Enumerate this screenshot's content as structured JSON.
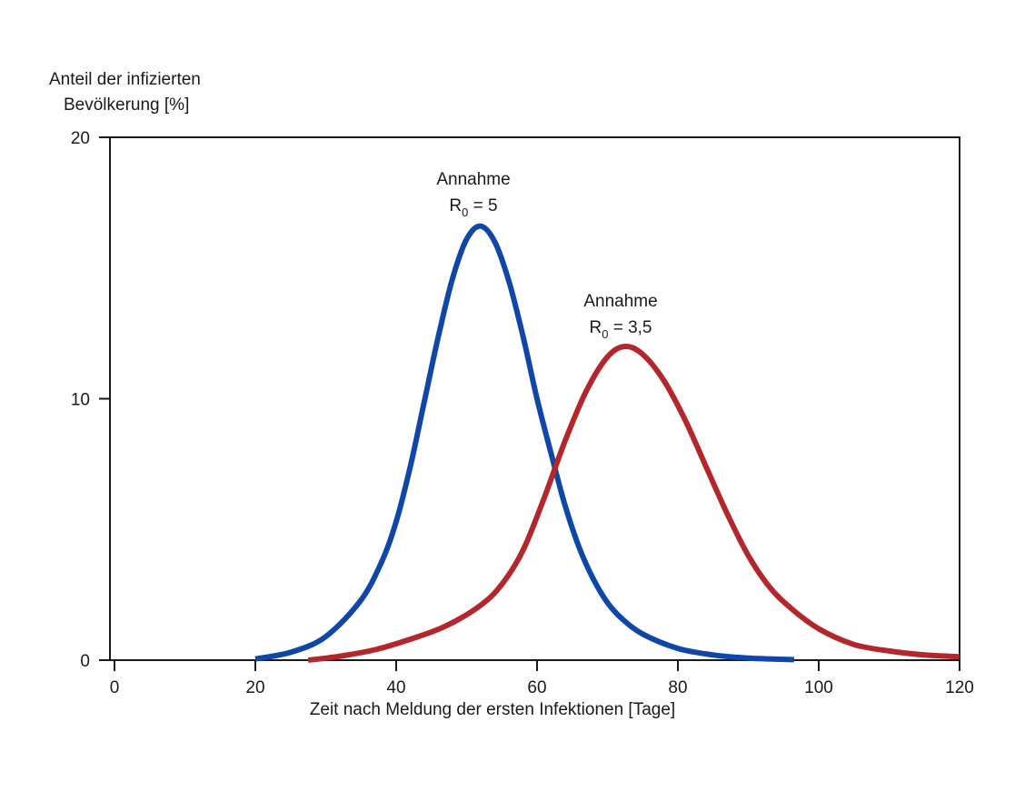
{
  "chart_data": {
    "type": "line",
    "ylabel_lines": [
      "Anteil der infizierten",
      "Bevölkerung [%]"
    ],
    "xlabel": "Zeit nach Meldung der ersten Infektionen [Tage]",
    "xlim": [
      0,
      120
    ],
    "ylim": [
      0,
      20
    ],
    "xticks": [
      "0",
      "20",
      "40",
      "60",
      "80",
      "100",
      "120"
    ],
    "yticks": [
      "0",
      "10",
      "20"
    ],
    "grid": false,
    "series": [
      {
        "label_line1": "Annahme",
        "label_line2_main": "R",
        "label_line2_sub": "0",
        "label_line2_rest": " = 5",
        "color": "#0f47a8",
        "x": [
          20,
          25,
          30,
          35,
          38,
          40,
          42,
          44,
          46,
          48,
          50,
          52,
          54,
          56,
          58,
          60,
          62,
          64,
          66,
          68,
          70,
          72,
          75,
          80,
          85,
          90,
          96.5
        ],
        "y": [
          0.05,
          0.3,
          0.9,
          2.3,
          3.8,
          5.3,
          7.4,
          9.9,
          12.4,
          14.6,
          16.1,
          16.6,
          16.0,
          14.5,
          12.4,
          10.0,
          7.9,
          5.9,
          4.3,
          3.1,
          2.2,
          1.6,
          1.0,
          0.45,
          0.2,
          0.08,
          0.02
        ]
      },
      {
        "label_line1": "Annahme",
        "label_line2_main": "R",
        "label_line2_sub": "0",
        "label_line2_rest": " = 3,5",
        "color": "#b3262b",
        "x": [
          27.5,
          32,
          37,
          42,
          47,
          52,
          55,
          58,
          61,
          64,
          67,
          70,
          72.5,
          75,
          78,
          81,
          84,
          87,
          90,
          93,
          96,
          100,
          105,
          110,
          115,
          120
        ],
        "y": [
          0.0,
          0.15,
          0.4,
          0.8,
          1.3,
          2.1,
          2.9,
          4.2,
          6.2,
          8.4,
          10.3,
          11.6,
          12.0,
          11.7,
          10.7,
          9.2,
          7.4,
          5.6,
          4.0,
          2.8,
          2.0,
          1.2,
          0.6,
          0.35,
          0.2,
          0.13
        ]
      }
    ]
  }
}
